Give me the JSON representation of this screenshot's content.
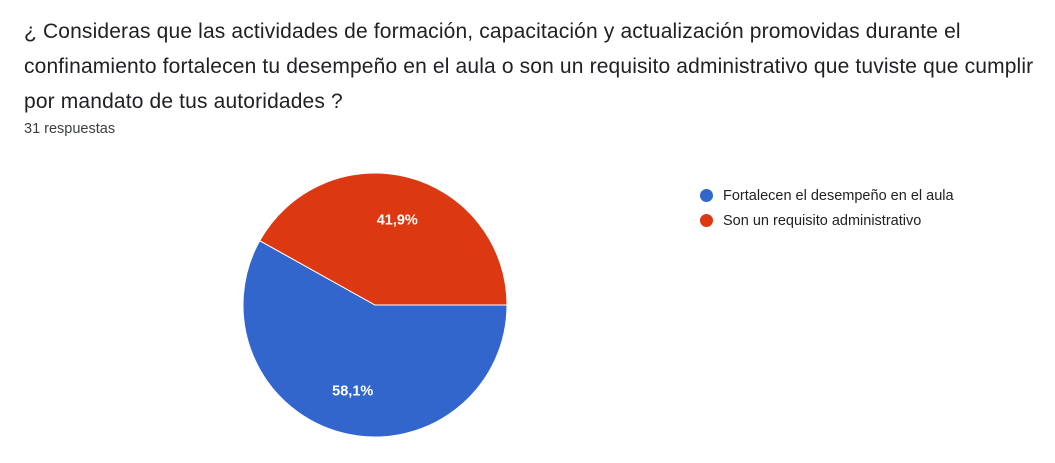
{
  "question": {
    "title": "¿ Consideras que las actividades de formación, capacitación y actualización promovidas durante el confinamiento fortalecen tu desempeño en el aula o son un requisito administrativo que tuviste que cumplir por mandato de tus autoridades ?",
    "response_count": "31 respuestas"
  },
  "chart_data": {
    "type": "pie",
    "slices": [
      {
        "label": "Fortalecen el desempeño en el aula",
        "value": 58.1,
        "display": "58,1%",
        "color": "#3366cc"
      },
      {
        "label": "Son un requisito administrativo",
        "value": 41.9,
        "display": "41,9%",
        "color": "#dc3912"
      }
    ],
    "legend_position": "right"
  }
}
